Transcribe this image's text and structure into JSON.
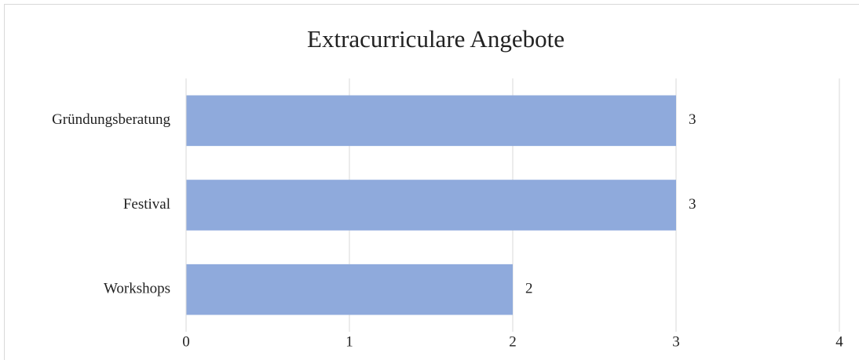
{
  "chart_data": {
    "type": "barh",
    "title": "Extracurriculare Angebote",
    "categories": [
      "Gründungsberatung",
      "Festival",
      "Workshops"
    ],
    "values": [
      3,
      3,
      2
    ],
    "color": "#8faadc",
    "xlim": [
      0,
      4
    ],
    "xticks": [
      0,
      1,
      2,
      3,
      4
    ],
    "grid": true,
    "data_labels": true
  }
}
